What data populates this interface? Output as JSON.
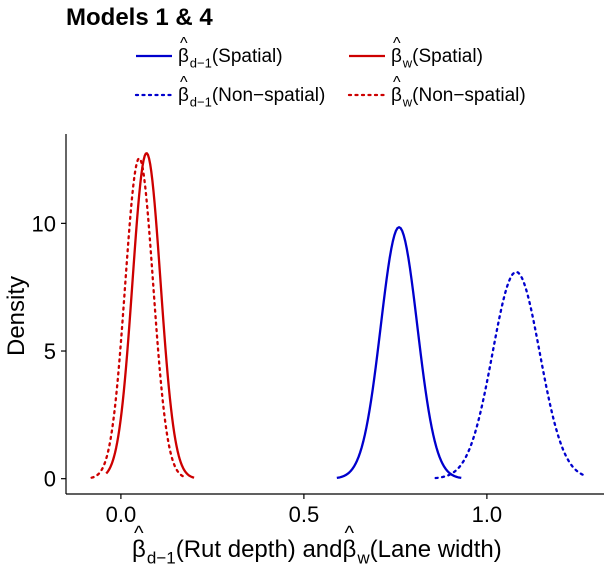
{
  "chart_data": {
    "type": "line",
    "title": "Models 1  & 4",
    "xlabel": {
      "beta_symbol": "β",
      "hat": "^",
      "subscript_d": "d−1",
      "subscript_w": "w",
      "part1": " (Rut depth) and ",
      "part2": " (Lane width)"
    },
    "ylabel": "Density",
    "xlim": [
      -0.15,
      1.32
    ],
    "ylim": [
      -0.6,
      13.5
    ],
    "x_ticks": [
      {
        "value": 0.0,
        "label": "0.0"
      },
      {
        "value": 0.5,
        "label": "0.5"
      },
      {
        "value": 1.0,
        "label": "1.0"
      }
    ],
    "y_ticks": [
      {
        "value": 0,
        "label": "0"
      },
      {
        "value": 5,
        "label": "5"
      },
      {
        "value": 10,
        "label": "10"
      }
    ],
    "legend": {
      "placement": "top",
      "entries": [
        {
          "symbol": "β",
          "subscript": "d−1",
          "text": " (Spatial)",
          "color": "#0000CD",
          "dashed": false
        },
        {
          "symbol": "β",
          "subscript": "w",
          "text": " (Spatial)",
          "color": "#CD0000",
          "dashed": false
        },
        {
          "symbol": "β",
          "subscript": "d−1",
          "text": " (Non−spatial)",
          "color": "#0000CD",
          "dashed": true
        },
        {
          "symbol": "β",
          "subscript": "w",
          "text": " (Non−spatial)",
          "color": "#CD0000",
          "dashed": true
        }
      ]
    },
    "series": [
      {
        "name": "beta_d-1 (Spatial)",
        "color": "#0000CD",
        "style": "solid",
        "mean": 0.76,
        "peak": 9.85,
        "min_x": 0.59,
        "max_x": 0.93
      },
      {
        "name": "beta_w (Spatial)",
        "color": "#CD0000",
        "style": "solid",
        "mean": 0.07,
        "peak": 12.75,
        "min_x": -0.04,
        "max_x": 0.2
      },
      {
        "name": "beta_d-1 (Non-spatial)",
        "color": "#0000CD",
        "style": "dotted",
        "mean": 1.08,
        "peak": 8.1,
        "min_x": 0.86,
        "max_x": 1.27
      },
      {
        "name": "beta_w (Non-spatial)",
        "color": "#CD0000",
        "style": "dotted",
        "mean": 0.05,
        "peak": 12.55,
        "min_x": -0.08,
        "max_x": 0.18
      }
    ]
  }
}
